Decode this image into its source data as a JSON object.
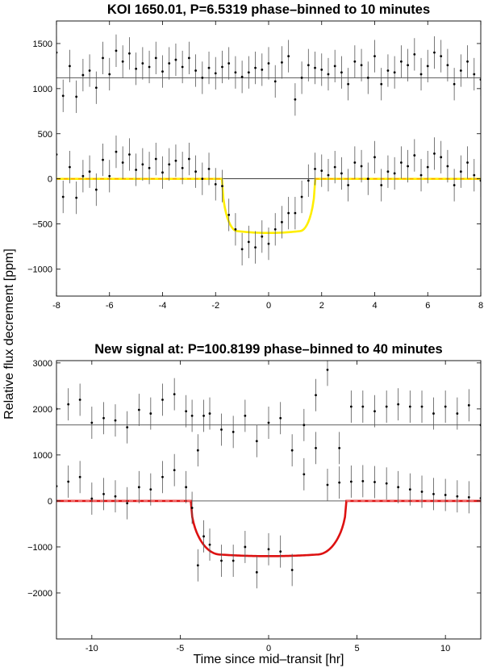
{
  "figure": {
    "ylabel": "Relative flux decrement [ppm]",
    "xlabel": "Time since mid–transit [hr]"
  },
  "chart_data": [
    {
      "type": "scatter",
      "title": "KOI 1650.01, P=6.5319 phase–binned to 10 minutes",
      "xlim": [
        -8,
        8
      ],
      "ylim": [
        -1300,
        1750
      ],
      "x_ticks": [
        -8,
        -6,
        -4,
        -2,
        0,
        2,
        4,
        6,
        8
      ],
      "y_ticks": [
        -1000,
        -500,
        0,
        500,
        1000,
        1500
      ],
      "grid": false,
      "reference_lines": [
        0,
        1120
      ],
      "model_color": "#ffee00",
      "model_dash_color": "#ff9900",
      "model": {
        "depth": 600,
        "half_width": 1.75,
        "ingress": 0.55
      },
      "series": [
        {
          "role": "upper",
          "x": [
            -8.0,
            -7.75,
            -7.5,
            -7.25,
            -7.0,
            -6.75,
            -6.5,
            -6.25,
            -6.0,
            -5.75,
            -5.5,
            -5.25,
            -5.0,
            -4.75,
            -4.5,
            -4.25,
            -4.0,
            -3.75,
            -3.5,
            -3.25,
            -3.0,
            -2.75,
            -2.5,
            -2.25,
            -2.0,
            -1.75,
            -1.5,
            -1.25,
            -1.0,
            -0.75,
            -0.5,
            -0.25,
            0.0,
            0.25,
            0.5,
            0.75,
            1.0,
            1.25,
            1.5,
            1.75,
            2.0,
            2.25,
            2.5,
            2.75,
            3.0,
            3.25,
            3.5,
            3.75,
            4.0,
            4.25,
            4.5,
            4.75,
            5.0,
            5.25,
            5.5,
            5.75,
            6.0,
            6.25,
            6.5,
            6.75,
            7.0,
            7.25,
            7.5,
            7.75,
            8.0
          ],
          "y": [
            1400,
            920,
            1250,
            910,
            1150,
            1200,
            1010,
            1340,
            1160,
            1420,
            1300,
            1390,
            1220,
            1280,
            1240,
            1340,
            1190,
            1280,
            1320,
            1240,
            1340,
            1200,
            1120,
            1230,
            1170,
            1240,
            1280,
            1180,
            1130,
            1180,
            1230,
            1210,
            1280,
            1080,
            1290,
            1360,
            880,
            1120,
            1260,
            1230,
            1210,
            1160,
            1250,
            1180,
            1050,
            1300,
            1260,
            1120,
            1360,
            1050,
            1200,
            1180,
            1300,
            1260,
            1380,
            1160,
            1250,
            1400,
            1360,
            1260,
            1050,
            1200,
            1300,
            1160,
            1100
          ],
          "err": [
            180,
            180,
            180,
            180,
            180,
            180,
            180,
            180,
            180,
            180,
            180,
            180,
            180,
            180,
            180,
            180,
            180,
            180,
            180,
            180,
            180,
            180,
            180,
            180,
            180,
            180,
            180,
            180,
            180,
            180,
            180,
            180,
            180,
            180,
            180,
            180,
            180,
            180,
            180,
            180,
            180,
            180,
            180,
            180,
            180,
            180,
            180,
            180,
            180,
            180,
            180,
            180,
            180,
            180,
            180,
            180,
            180,
            180,
            180,
            180,
            180,
            180,
            180,
            180,
            180
          ]
        },
        {
          "role": "lower",
          "x": [
            -8.0,
            -7.75,
            -7.5,
            -7.25,
            -7.0,
            -6.75,
            -6.5,
            -6.25,
            -6.0,
            -5.75,
            -5.5,
            -5.25,
            -5.0,
            -4.75,
            -4.5,
            -4.25,
            -4.0,
            -3.75,
            -3.5,
            -3.25,
            -3.0,
            -2.75,
            -2.5,
            -2.25,
            -2.0,
            -1.75,
            -1.5,
            -1.25,
            -1.0,
            -0.75,
            -0.5,
            -0.25,
            0.0,
            0.25,
            0.5,
            0.75,
            1.0,
            1.25,
            1.5,
            1.75,
            2.0,
            2.25,
            2.5,
            2.75,
            3.0,
            3.25,
            3.5,
            3.75,
            4.0,
            4.25,
            4.5,
            4.75,
            5.0,
            5.25,
            5.5,
            5.75,
            6.0,
            6.25,
            6.5,
            6.75,
            7.0,
            7.25,
            7.5,
            7.75,
            8.0
          ],
          "y": [
            270,
            -200,
            130,
            -210,
            30,
            80,
            -120,
            210,
            30,
            300,
            180,
            270,
            100,
            160,
            120,
            220,
            70,
            160,
            200,
            120,
            220,
            80,
            0,
            110,
            -60,
            -80,
            -400,
            -560,
            -780,
            -700,
            -760,
            -640,
            -720,
            -560,
            -480,
            -380,
            -380,
            -200,
            -20,
            110,
            90,
            40,
            130,
            60,
            -70,
            180,
            140,
            0,
            240,
            -70,
            80,
            60,
            180,
            140,
            260,
            40,
            130,
            280,
            240,
            140,
            -70,
            80,
            180,
            40,
            -20
          ],
          "err": [
            180,
            180,
            180,
            180,
            180,
            180,
            180,
            180,
            180,
            180,
            180,
            180,
            180,
            180,
            180,
            180,
            180,
            180,
            180,
            180,
            180,
            180,
            180,
            180,
            180,
            180,
            180,
            180,
            180,
            180,
            180,
            180,
            180,
            180,
            180,
            180,
            180,
            180,
            180,
            180,
            180,
            180,
            180,
            180,
            180,
            180,
            180,
            180,
            180,
            180,
            180,
            180,
            180,
            180,
            180,
            180,
            180,
            180,
            180,
            180,
            180,
            180,
            180,
            180,
            180
          ]
        }
      ]
    },
    {
      "type": "scatter",
      "title": "New signal at: P=100.8199 phase–binned to 40 minutes",
      "xlim": [
        -12,
        12
      ],
      "ylim": [
        -3000,
        3050
      ],
      "x_ticks": [
        -10,
        -5,
        0,
        5,
        10
      ],
      "y_ticks": [
        -2000,
        -1000,
        0,
        1000,
        2000,
        3000
      ],
      "grid": false,
      "reference_lines": [
        0,
        1650
      ],
      "model_color": "#dd1111",
      "model_dash_color": "#ff9999",
      "model": {
        "depth": 1200,
        "half_width": 4.4,
        "ingress": 1.6
      },
      "series": [
        {
          "role": "upper",
          "x": [
            -12.0,
            -11.33,
            -10.67,
            -10.0,
            -9.33,
            -8.67,
            -8.0,
            -7.33,
            -6.67,
            -6.0,
            -5.33,
            -4.67,
            -4.33,
            -4.0,
            -3.67,
            -3.33,
            -2.67,
            -2.0,
            -1.33,
            -0.67,
            0.0,
            0.67,
            1.33,
            2.0,
            2.67,
            3.33,
            4.0,
            4.67,
            5.33,
            6.0,
            6.67,
            7.33,
            8.0,
            8.67,
            9.33,
            10.0,
            10.67,
            11.33,
            12.0
          ],
          "y": [
            2000,
            2100,
            2200,
            1700,
            1800,
            1750,
            1600,
            1980,
            1900,
            2200,
            2320,
            1950,
            1850,
            1100,
            1850,
            1900,
            1550,
            1500,
            1850,
            1300,
            1700,
            1800,
            1100,
            1650,
            2300,
            2850,
            1150,
            2050,
            2050,
            1950,
            2050,
            2100,
            2050,
            2050,
            1900,
            2050,
            1900,
            2080,
            1650
          ],
          "err": [
            350,
            350,
            350,
            350,
            350,
            350,
            350,
            350,
            350,
            350,
            350,
            350,
            350,
            350,
            350,
            350,
            350,
            350,
            350,
            350,
            350,
            350,
            350,
            350,
            350,
            350,
            350,
            350,
            350,
            350,
            350,
            350,
            350,
            350,
            350,
            350,
            350,
            350,
            350
          ]
        },
        {
          "role": "lower",
          "x": [
            -12.0,
            -11.33,
            -10.67,
            -10.0,
            -9.33,
            -8.67,
            -8.0,
            -7.33,
            -6.67,
            -6.0,
            -5.33,
            -4.67,
            -4.33,
            -4.0,
            -3.67,
            -3.33,
            -2.67,
            -2.0,
            -1.33,
            -0.67,
            0.0,
            0.67,
            1.33,
            2.0,
            2.67,
            3.33,
            4.0,
            4.67,
            5.33,
            6.0,
            6.67,
            7.33,
            8.0,
            8.67,
            9.33,
            10.0,
            10.67,
            11.33,
            12.0
          ],
          "y": [
            320,
            420,
            520,
            50,
            150,
            100,
            -50,
            300,
            250,
            520,
            670,
            300,
            -150,
            -1400,
            -770,
            -950,
            -1300,
            -1300,
            -1000,
            -1550,
            -1050,
            -1100,
            -1500,
            580,
            1150,
            350,
            400,
            420,
            430,
            410,
            380,
            300,
            250,
            200,
            150,
            130,
            100,
            80,
            60
          ],
          "err": [
            350,
            350,
            350,
            350,
            350,
            350,
            350,
            350,
            350,
            350,
            350,
            350,
            350,
            350,
            350,
            350,
            350,
            350,
            350,
            350,
            350,
            350,
            350,
            350,
            350,
            350,
            350,
            350,
            350,
            350,
            350,
            350,
            350,
            350,
            350,
            350,
            350,
            350,
            350
          ]
        }
      ]
    }
  ]
}
